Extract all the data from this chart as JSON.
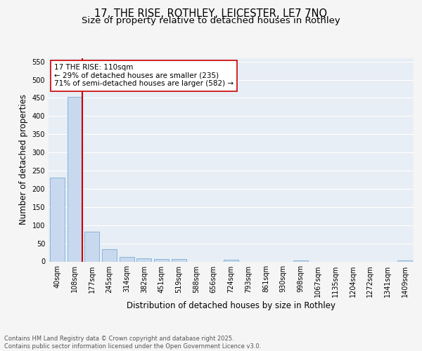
{
  "title1": "17, THE RISE, ROTHLEY, LEICESTER, LE7 7NQ",
  "title2": "Size of property relative to detached houses in Rothley",
  "xlabel": "Distribution of detached houses by size in Rothley",
  "ylabel": "Number of detached properties",
  "bar_labels": [
    "40sqm",
    "108sqm",
    "177sqm",
    "245sqm",
    "314sqm",
    "382sqm",
    "451sqm",
    "519sqm",
    "588sqm",
    "656sqm",
    "724sqm",
    "793sqm",
    "861sqm",
    "930sqm",
    "998sqm",
    "1067sqm",
    "1135sqm",
    "1204sqm",
    "1272sqm",
    "1341sqm",
    "1409sqm"
  ],
  "bar_values": [
    230,
    453,
    83,
    33,
    13,
    9,
    7,
    6,
    0,
    0,
    4,
    0,
    0,
    0,
    2,
    0,
    0,
    0,
    0,
    0,
    2
  ],
  "bar_color": "#c8d9ef",
  "bar_edge_color": "#7aadd4",
  "vline_color": "#cc0000",
  "annotation_text": "17 THE RISE: 110sqm\n← 29% of detached houses are smaller (235)\n71% of semi-detached houses are larger (582) →",
  "annotation_box_color": "#ffffff",
  "annotation_box_edge": "#cc0000",
  "ylim": [
    0,
    560
  ],
  "yticks": [
    0,
    50,
    100,
    150,
    200,
    250,
    300,
    350,
    400,
    450,
    500,
    550
  ],
  "plot_bg_color": "#e8eef5",
  "grid_color": "#ffffff",
  "fig_bg_color": "#f5f5f5",
  "footer_text": "Contains HM Land Registry data © Crown copyright and database right 2025.\nContains public sector information licensed under the Open Government Licence v3.0.",
  "title_fontsize": 10.5,
  "subtitle_fontsize": 9.5,
  "tick_fontsize": 7,
  "label_fontsize": 8.5,
  "annotation_fontsize": 7.5,
  "footer_fontsize": 6.0
}
